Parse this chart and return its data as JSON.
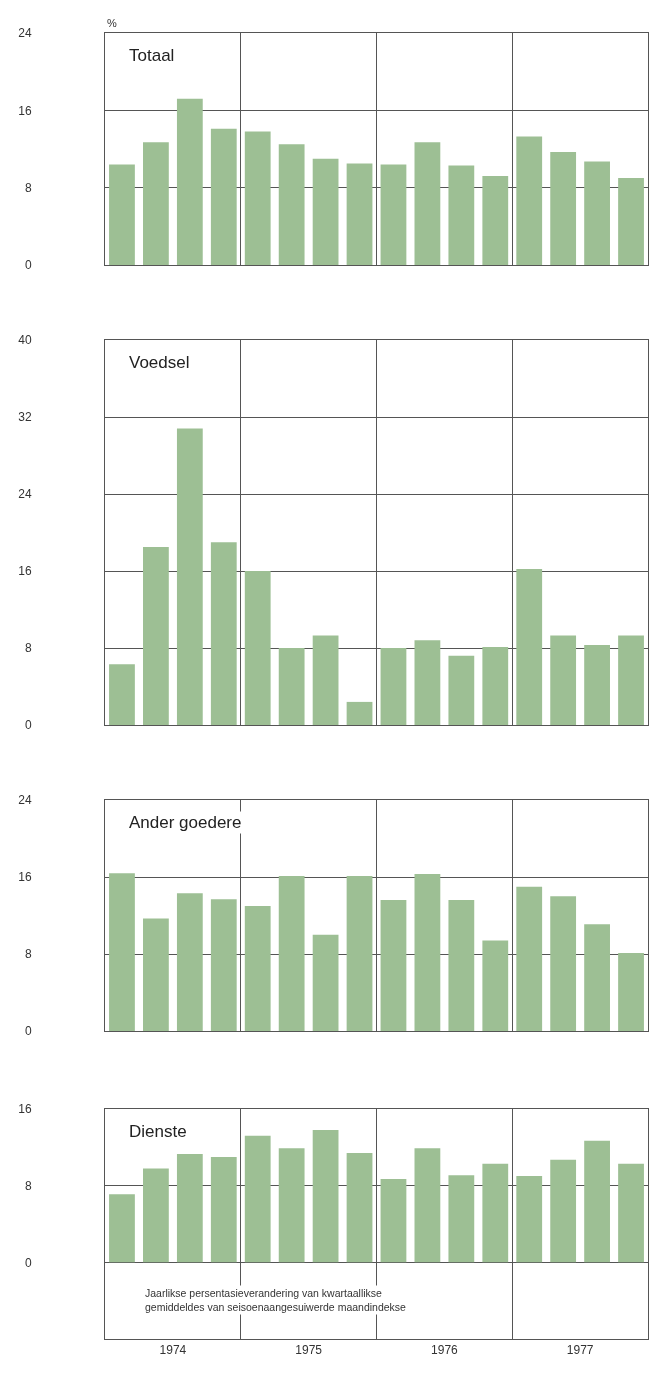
{
  "chart_data": [
    {
      "type": "bar",
      "title": "Totaal",
      "ylabel": "%",
      "color": "#9dbf94",
      "x": [
        1974.125,
        1974.375,
        1974.625,
        1974.875,
        1975.125,
        1975.375,
        1975.625,
        1975.875,
        1976.125,
        1976.375,
        1976.625,
        1976.875,
        1977.125,
        1977.375,
        1977.625,
        1977.875
      ],
      "values": [
        10.4,
        12.7,
        17.2,
        14.1,
        13.8,
        12.5,
        11.0,
        10.5,
        10.4,
        12.7,
        10.3,
        9.2,
        13.3,
        11.7,
        10.7,
        9.0
      ],
      "xlim": [
        1974,
        1978
      ],
      "xticks": [
        {
          "value": 1975,
          "label": null
        },
        {
          "value": 1976,
          "label": null
        },
        {
          "value": 1977,
          "label": null
        }
      ],
      "ylim": [
        0,
        24
      ],
      "yticks": [
        0,
        8,
        16,
        24
      ],
      "grid": true,
      "tick_labels": "y"
    },
    {
      "type": "bar",
      "title": "Voedsel",
      "color": "#9dbf94",
      "x": [
        1974.125,
        1974.375,
        1974.625,
        1974.875,
        1975.125,
        1975.375,
        1975.625,
        1975.875,
        1976.125,
        1976.375,
        1976.625,
        1976.875,
        1977.125,
        1977.375,
        1977.625,
        1977.875
      ],
      "values": [
        6.3,
        18.5,
        30.8,
        19.0,
        16.0,
        8.0,
        9.3,
        2.4,
        8.0,
        8.8,
        7.2,
        8.1,
        16.2,
        9.3,
        8.3,
        9.3
      ],
      "xlim": [
        1974,
        1978
      ],
      "xticks": [
        {
          "value": 1975,
          "label": null
        },
        {
          "value": 1976,
          "label": null
        },
        {
          "value": 1977,
          "label": null
        }
      ],
      "ylim": [
        0,
        40
      ],
      "yticks": [
        0,
        8,
        16,
        24,
        32,
        40
      ],
      "grid": true,
      "tick_labels": "y"
    },
    {
      "type": "bar",
      "title": "Ander goedere",
      "color": "#9dbf94",
      "x": [
        1974.125,
        1974.375,
        1974.625,
        1974.875,
        1975.125,
        1975.375,
        1975.625,
        1975.875,
        1976.125,
        1976.375,
        1976.625,
        1976.875,
        1977.125,
        1977.375,
        1977.625,
        1977.875
      ],
      "values": [
        16.4,
        11.7,
        14.3,
        13.7,
        13.0,
        16.1,
        10.0,
        16.1,
        13.6,
        16.3,
        13.6,
        9.4,
        15.0,
        14.0,
        11.1,
        8.1
      ],
      "xlim": [
        1974,
        1978
      ],
      "xticks": [
        {
          "value": 1975,
          "label": null
        },
        {
          "value": 1976,
          "label": null
        },
        {
          "value": 1977,
          "label": null
        }
      ],
      "ylim": [
        0,
        24
      ],
      "yticks": [
        0,
        8,
        16,
        24
      ],
      "grid": true,
      "tick_labels": "y"
    },
    {
      "type": "bar",
      "title": "Dienste",
      "color": "#9dbf94",
      "x": [
        1974.125,
        1974.375,
        1974.625,
        1974.875,
        1975.125,
        1975.375,
        1975.625,
        1975.875,
        1976.125,
        1976.375,
        1976.625,
        1976.875,
        1977.125,
        1977.375,
        1977.625,
        1977.875
      ],
      "values": [
        7.1,
        9.8,
        11.3,
        11.0,
        13.2,
        11.9,
        13.8,
        11.4,
        8.7,
        11.9,
        9.1,
        10.3,
        9.0,
        10.7,
        12.7,
        10.3
      ],
      "xlim": [
        1974,
        1978
      ],
      "xticks": [
        {
          "value": 1974.5,
          "label": "1974"
        },
        {
          "value": 1975,
          "label": null
        },
        {
          "value": 1975.5,
          "label": "1975"
        },
        {
          "value": 1976,
          "label": null
        },
        {
          "value": 1976.5,
          "label": "1976"
        },
        {
          "value": 1977,
          "label": null
        },
        {
          "value": 1977.5,
          "label": "1977"
        }
      ],
      "ylim": [
        -8,
        16
      ],
      "yticks": [
        0,
        8,
        16
      ],
      "grid": true,
      "annotations": [
        "Jaarlikse persentasieverandering van kwartaallikse gemiddeldes van seisoenaangesuiwerde maandindekse"
      ]
    }
  ]
}
